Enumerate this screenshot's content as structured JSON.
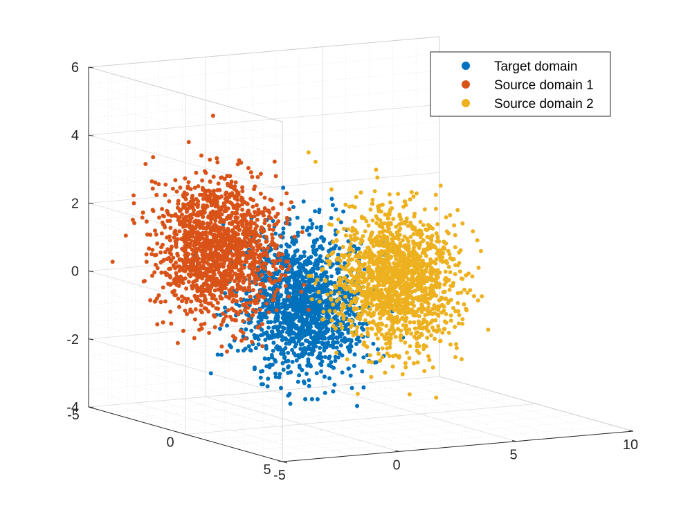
{
  "chart_data": {
    "type": "scatter3d",
    "title": "",
    "xlabel": "",
    "ylabel": "",
    "zlabel": "",
    "xlim": [
      -5,
      10
    ],
    "ylim": [
      -5,
      5
    ],
    "zlim": [
      -4,
      6
    ],
    "x_ticks": [
      "-5",
      "0",
      "5",
      "10"
    ],
    "y_ticks": [
      "-5",
      "0",
      "5"
    ],
    "z_ticks": [
      "-4",
      "-2",
      "0",
      "2",
      "4",
      "6"
    ],
    "grid": true,
    "minor_grid": true,
    "legend_position": "top-right",
    "series": [
      {
        "name": "Target domain",
        "color": "#0072BD",
        "count": 1500,
        "mean": [
          0,
          0,
          -0.5
        ],
        "std": [
          1,
          1,
          1
        ]
      },
      {
        "name": "Source domain 1",
        "color": "#D95319",
        "count": 1500,
        "mean": [
          -2,
          -2,
          1
        ],
        "std": [
          1,
          1,
          1
        ]
      },
      {
        "name": "Source domain 2",
        "color": "#EDB120",
        "count": 1500,
        "mean": [
          4,
          0,
          0
        ],
        "std": [
          1,
          1,
          1
        ]
      }
    ]
  }
}
